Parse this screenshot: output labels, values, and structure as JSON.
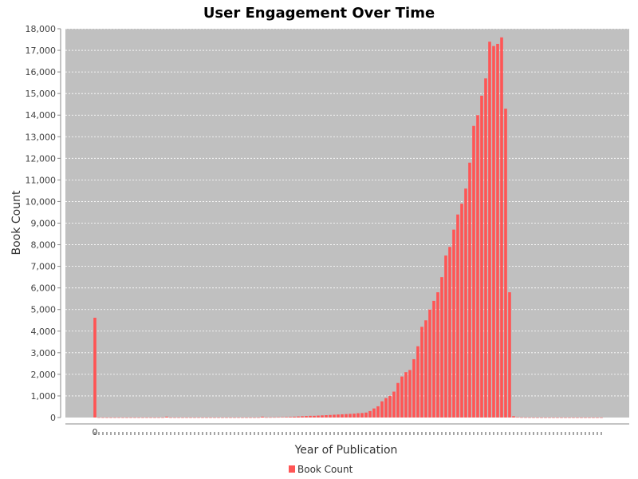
{
  "chart_data": {
    "type": "bar",
    "title": "User Engagement Over Time",
    "xlabel": "Year of Publication",
    "ylabel": "Book Count",
    "ylim": [
      0,
      18000
    ],
    "yticks": [
      0,
      1000,
      2000,
      3000,
      4000,
      5000,
      6000,
      7000,
      8000,
      9000,
      10000,
      11000,
      12000,
      13000,
      14000,
      15000,
      16000,
      17000,
      18000
    ],
    "ytick_labels": [
      "0",
      "1,000",
      "2,000",
      "3,000",
      "4,000",
      "5,000",
      "6,000",
      "7,000",
      "8,000",
      "9,000",
      "10,000",
      "11,000",
      "12,000",
      "13,000",
      "14,000",
      "15,000",
      "16,000",
      "17,000",
      "18,000"
    ],
    "first_category_label": "0",
    "grid": true,
    "legend_position": "bottom-center",
    "series": [
      {
        "name": "Book Count",
        "color": "#ff5555",
        "values": [
          4620,
          5,
          3,
          2,
          2,
          3,
          3,
          2,
          2,
          3,
          3,
          2,
          2,
          3,
          3,
          2,
          2,
          3,
          40,
          3,
          3,
          2,
          2,
          3,
          3,
          3,
          3,
          2,
          2,
          3,
          3,
          2,
          2,
          3,
          3,
          3,
          3,
          2,
          2,
          3,
          3,
          3,
          40,
          8,
          10,
          12,
          15,
          18,
          25,
          30,
          40,
          50,
          60,
          70,
          80,
          80,
          90,
          100,
          110,
          120,
          130,
          140,
          150,
          160,
          170,
          180,
          200,
          210,
          230,
          300,
          420,
          520,
          750,
          900,
          1000,
          1200,
          1600,
          1900,
          2100,
          2200,
          2700,
          3300,
          4200,
          4500,
          5000,
          5400,
          5800,
          6500,
          7500,
          7900,
          8700,
          9400,
          9900,
          10600,
          11800,
          13500,
          14000,
          14900,
          15700,
          17400,
          17200,
          17300,
          17600,
          14300,
          5800,
          60,
          15,
          8,
          5,
          4,
          3,
          2,
          2,
          2,
          2,
          2,
          2,
          2,
          2,
          2,
          2,
          2,
          2,
          2,
          2,
          2,
          2,
          2
        ]
      }
    ]
  }
}
